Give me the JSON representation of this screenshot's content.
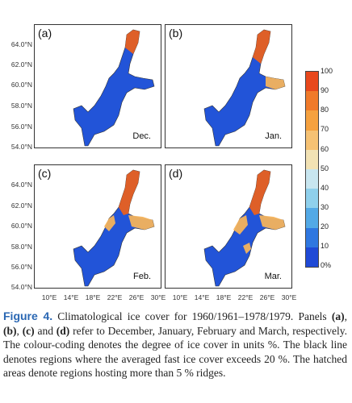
{
  "panels": [
    {
      "label": "(a)",
      "month": "Dec."
    },
    {
      "label": "(b)",
      "month": "Jan."
    },
    {
      "label": "(c)",
      "month": "Feb."
    },
    {
      "label": "(d)",
      "month": "Mar."
    }
  ],
  "lat_labels": [
    "64.0°N",
    "62.0°N",
    "60.0°N",
    "58.0°N",
    "56.0°N",
    "54.0°N"
  ],
  "lon_labels": [
    "10°E",
    "14°E",
    "18°E",
    "22°E",
    "26°E",
    "30°E"
  ],
  "colorbar": {
    "ticks": [
      "100",
      "90",
      "80",
      "70",
      "60",
      "50",
      "40",
      "30",
      "20",
      "10",
      "0%"
    ],
    "colors": [
      "#e8481c",
      "#f07a2a",
      "#f5a13f",
      "#f6c274",
      "#f2e2b4",
      "#c8e6f0",
      "#8fd0ec",
      "#53a9e6",
      "#2f77e0",
      "#1f49d6"
    ]
  },
  "caption": {
    "label": "Figure 4.",
    "s1": " Climatological ice cover for 1960/1961–1978/1979. Panels ",
    "a": "(a)",
    "comma1": ", ",
    "b": "(b)",
    "comma2": ", ",
    "c": "(c)",
    "and": " and ",
    "d": "(d)",
    "s2": " refer to December, January, February and March, respectively. The colour-coding denotes the degree of ice cover in units %. The black line denotes regions where the averaged fast ice cover exceeds 20 %. The hatched areas denote regions hosting more than 5 % ridges."
  }
}
